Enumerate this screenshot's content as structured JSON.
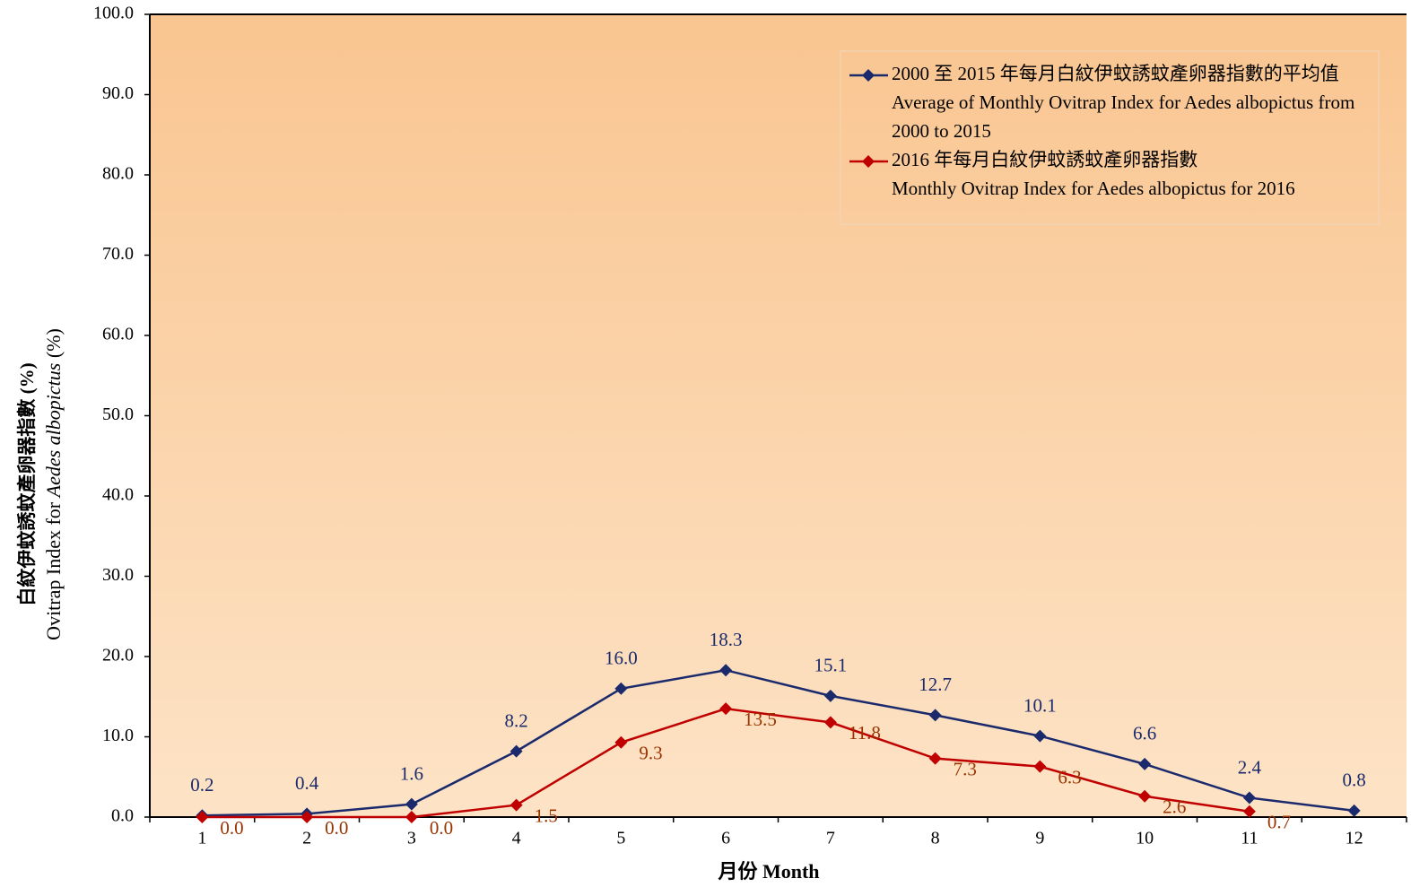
{
  "chart_data": {
    "type": "line",
    "x_label": "月份 Month",
    "y_label_zh": "白紋伊蚊誘蚊產卵器指數 (%)",
    "y_label_en": [
      "Ovitrap Index for ",
      "Aedes albopictus",
      " (%)"
    ],
    "categories": [
      "1",
      "2",
      "3",
      "4",
      "5",
      "6",
      "7",
      "8",
      "9",
      "10",
      "11",
      "12"
    ],
    "ylim": [
      0,
      100
    ],
    "yticks": [
      {
        "value": 0,
        "label": "0.0"
      },
      {
        "value": 10,
        "label": "10.0"
      },
      {
        "value": 20,
        "label": "20.0"
      },
      {
        "value": 30,
        "label": "30.0"
      },
      {
        "value": 40,
        "label": "40.0"
      },
      {
        "value": 50,
        "label": "50.0"
      },
      {
        "value": 60,
        "label": "60.0"
      },
      {
        "value": 70,
        "label": "70.0"
      },
      {
        "value": 80,
        "label": "80.0"
      },
      {
        "value": 90,
        "label": "90.0"
      },
      {
        "value": 100,
        "label": "100.0"
      }
    ],
    "legend": "upper right",
    "series": [
      {
        "name": "2000 至 2015 年每月白紋伊蚊誘蚊產卵器指數的平均值",
        "name_en": [
          "Average of Monthly Ovitrap Index  for Aedes albopictus from",
          "2000 to 2015"
        ],
        "color": "#1a2a6c",
        "label_color": "#1a2a6c",
        "values": [
          0.2,
          0.4,
          1.6,
          8.2,
          16.0,
          18.3,
          15.1,
          12.7,
          10.1,
          6.6,
          2.4,
          0.8
        ],
        "value_labels": [
          "0.2",
          "0.4",
          "1.6",
          "8.2",
          "16.0",
          "18.3",
          "15.1",
          "12.7",
          "10.1",
          "6.6",
          "2.4",
          "0.8"
        ]
      },
      {
        "name": "2016 年每月白紋伊蚊誘蚊產卵器指數",
        "name_en": [
          "Monthly Ovitrap Index for Aedes albopictus for 2016"
        ],
        "color": "#c00000",
        "label_color": "#993300",
        "values": [
          0.0,
          0.0,
          0.0,
          1.5,
          9.3,
          13.5,
          11.8,
          7.3,
          6.3,
          2.6,
          0.7,
          null
        ],
        "value_labels": [
          "0.0",
          "0.0",
          "0.0",
          "1.5",
          "9.3",
          "13.5",
          "11.8",
          "7.3",
          "6.3",
          "2.6",
          "0.7",
          null
        ]
      }
    ]
  }
}
